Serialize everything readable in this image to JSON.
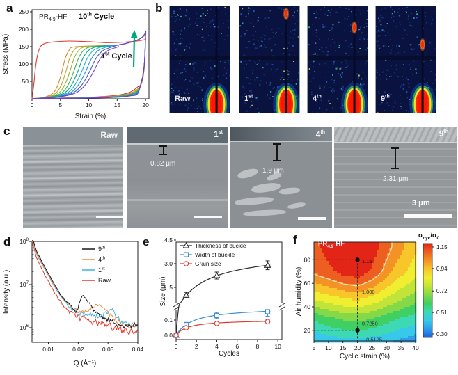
{
  "panel_letters": [
    "a",
    "b",
    "c",
    "d",
    "e",
    "f"
  ],
  "chart_data": [
    {
      "id": "a",
      "type": "line",
      "title": {
        "base": "PR",
        "sub": "4.9",
        "rest": "-HF"
      },
      "xlabel": "Strain (%)",
      "ylabel": "Stress (MPa)",
      "xlim": [
        0,
        20.6
      ],
      "ylim": [
        0,
        256
      ],
      "xticks": [
        0,
        5,
        10,
        15,
        20
      ],
      "yticks": [
        50,
        100,
        150,
        200,
        250
      ],
      "annotations": [
        {
          "base": "10",
          "sup": "th",
          "rest": " Cycle",
          "color": "#7a3bc8"
        },
        {
          "base": "1",
          "sup": "st",
          "rest": " Cycle",
          "color": "#d93a2b"
        }
      ],
      "arrow_color": "#00a87a",
      "cycles": [
        {
          "name": "1st",
          "color": "#d93a2b",
          "first": true,
          "end": 171,
          "tail": 1.3
        },
        {
          "name": "2nd",
          "color": "#d98a2b",
          "c": 5.3,
          "end": 183,
          "tail": 1.08
        },
        {
          "name": "3rd",
          "color": "#c2a42a",
          "c": 6.0,
          "end": 184,
          "tail": 1.0
        },
        {
          "name": "4th",
          "color": "#8fba3a",
          "c": 6.7,
          "end": 185,
          "tail": 0.93
        },
        {
          "name": "5th",
          "color": "#3fae54",
          "c": 7.4,
          "end": 186,
          "tail": 0.86
        },
        {
          "name": "6th",
          "color": "#00a884",
          "c": 8.1,
          "end": 187,
          "tail": 0.79
        },
        {
          "name": "7th",
          "color": "#19b3c4",
          "c": 8.8,
          "end": 188,
          "tail": 0.73
        },
        {
          "name": "8th",
          "color": "#2f8fd8",
          "c": 9.5,
          "end": 188.5,
          "tail": 0.67
        },
        {
          "name": "9th",
          "color": "#3f5fd0",
          "c": 10.2,
          "end": 189,
          "tail": 0.61
        },
        {
          "name": "10th",
          "color": "#7a3bc8",
          "c": 10.9,
          "end": 190,
          "tail": 0.55
        }
      ]
    },
    {
      "id": "d",
      "type": "line",
      "yscale": "log",
      "xlabel": "Q (Å⁻¹)",
      "ylabel": "Intensity (a.u.)",
      "xlim": [
        0.0045,
        0.04
      ],
      "xticks": [
        0.01,
        0.02,
        0.03,
        0.04
      ],
      "ytick_exponents": [
        6,
        7,
        8
      ],
      "series": [
        {
          "name": {
            "base": "9",
            "sup": "th"
          },
          "color": "#1a1a1a",
          "noise": 0.75,
          "points": [
            [
              0.0045,
              130000000
            ],
            [
              0.006,
              60000000
            ],
            [
              0.008,
              32000000
            ],
            [
              0.01,
              18000000
            ],
            [
              0.012,
              10000000
            ],
            [
              0.014,
              6000000
            ],
            [
              0.016,
              4000000
            ],
            [
              0.018,
              2900000
            ],
            [
              0.0195,
              2300000
            ],
            [
              0.0205,
              4200000
            ],
            [
              0.0215,
              5500000
            ],
            [
              0.023,
              4300000
            ],
            [
              0.025,
              2600000
            ],
            [
              0.027,
              1900000
            ],
            [
              0.03,
              1500000
            ],
            [
              0.033,
              1200000
            ],
            [
              0.036,
              1050000
            ],
            [
              0.04,
              1250000
            ]
          ]
        },
        {
          "name": {
            "base": "4",
            "sup": "th"
          },
          "color": "#ef8c4a",
          "noise": 0.8,
          "points": [
            [
              0.0045,
              125000000
            ],
            [
              0.006,
              55000000
            ],
            [
              0.008,
              30000000
            ],
            [
              0.01,
              17000000
            ],
            [
              0.012,
              9500000
            ],
            [
              0.014,
              5800000
            ],
            [
              0.016,
              3900000
            ],
            [
              0.018,
              2900000
            ],
            [
              0.02,
              2400000
            ],
            [
              0.022,
              2300000
            ],
            [
              0.024,
              2600000
            ],
            [
              0.026,
              3300000
            ],
            [
              0.0275,
              3400000
            ],
            [
              0.029,
              2600000
            ],
            [
              0.031,
              1800000
            ],
            [
              0.034,
              1300000
            ],
            [
              0.037,
              1150000
            ],
            [
              0.04,
              1100000
            ]
          ]
        },
        {
          "name": {
            "base": "1",
            "sup": "st"
          },
          "color": "#3fb3dc",
          "noise": 0.85,
          "points": [
            [
              0.0045,
              120000000
            ],
            [
              0.006,
              52000000
            ],
            [
              0.008,
              28000000
            ],
            [
              0.01,
              16000000
            ],
            [
              0.012,
              9000000
            ],
            [
              0.014,
              5500000
            ],
            [
              0.016,
              3700000
            ],
            [
              0.018,
              2700000
            ],
            [
              0.02,
              2200000
            ],
            [
              0.023,
              2000000
            ],
            [
              0.026,
              1900000
            ],
            [
              0.028,
              1900000
            ],
            [
              0.03,
              2400000
            ],
            [
              0.0315,
              2500000
            ],
            [
              0.033,
              1700000
            ],
            [
              0.036,
              1200000
            ],
            [
              0.04,
              1150000
            ]
          ]
        },
        {
          "name": {
            "base": "Raw",
            "sup": ""
          },
          "color": "#e6392e",
          "noise": 1.0,
          "points": [
            [
              0.0045,
              100000000
            ],
            [
              0.006,
              42000000
            ],
            [
              0.008,
              21000000
            ],
            [
              0.01,
              12000000
            ],
            [
              0.012,
              6500000
            ],
            [
              0.014,
              4000000
            ],
            [
              0.016,
              2800000
            ],
            [
              0.018,
              2100000
            ],
            [
              0.02,
              1750000
            ],
            [
              0.023,
              1500000
            ],
            [
              0.026,
              1350000
            ],
            [
              0.03,
              1100000
            ],
            [
              0.034,
              900000
            ],
            [
              0.037,
              820000
            ],
            [
              0.04,
              850000
            ]
          ]
        }
      ]
    },
    {
      "id": "e",
      "type": "scatter-line",
      "xlabel": "Cycles",
      "ylabel": "Size (μm)",
      "xlim": [
        0,
        10.4
      ],
      "xticks": [
        0,
        2,
        4,
        6,
        8,
        10
      ],
      "yticks_lower": [
        0.0,
        0.1
      ],
      "yticks_upper": [
        1.5,
        3.0,
        4.5
      ],
      "series": [
        {
          "name": "Thickness of buckle",
          "color": "#2b2b2b",
          "marker": "triangle",
          "x": [
            0,
            1,
            4,
            9
          ],
          "y": [
            0,
            1.0,
            2.25,
            2.9
          ],
          "err": [
            0,
            0.18,
            0.22,
            0.28
          ],
          "trend": {
            "A": 3.8,
            "B": 2.8
          }
        },
        {
          "name": "Width of buckle",
          "color": "#3b8fd4",
          "marker": "square",
          "x": [
            0,
            1,
            4,
            9
          ],
          "y": [
            0,
            0.07,
            0.13,
            0.155
          ],
          "err": [
            0,
            0.015,
            0.02,
            0.03
          ],
          "trend": {
            "A": 0.185,
            "B": 1.6
          }
        },
        {
          "name": "Grain size",
          "color": "#e0392e",
          "marker": "circle",
          "x": [
            0,
            1,
            4,
            9
          ],
          "y": [
            0,
            0.05,
            0.078,
            0.09
          ],
          "err": [
            0,
            0.008,
            0.008,
            0.012
          ],
          "trend": {
            "A": 0.103,
            "B": 1.1
          }
        }
      ]
    },
    {
      "id": "f",
      "type": "contour-heatmap",
      "corner_label": {
        "base": "PR",
        "sub": "4.9",
        "rest": "-HF"
      },
      "xlabel": "Cyclic strain (%)",
      "ylabel": "Air humidity (%)",
      "xticks": [
        5,
        10,
        15,
        20,
        25,
        30,
        35,
        40
      ],
      "yticks": [
        20,
        40,
        60,
        80
      ],
      "grid": {
        "strain": [
          5,
          10,
          15,
          20,
          25,
          30,
          35,
          40
        ],
        "humidity": [
          10,
          30,
          50,
          70,
          90
        ],
        "values": [
          [
            0.44,
            0.46,
            0.48,
            0.49,
            0.47,
            0.45,
            0.42,
            0.39
          ],
          [
            0.6,
            0.64,
            0.67,
            0.68,
            0.66,
            0.62,
            0.58,
            0.55
          ],
          [
            0.84,
            0.87,
            0.9,
            0.92,
            0.88,
            0.82,
            0.76,
            0.71
          ],
          [
            1.02,
            1.06,
            1.11,
            1.13,
            1.07,
            0.97,
            0.89,
            0.83
          ],
          [
            1.05,
            1.11,
            1.16,
            1.17,
            1.12,
            1.03,
            0.95,
            0.88
          ]
        ]
      },
      "white_contour_level": 1.0,
      "points": [
        {
          "strain": 20,
          "humidity": 80
        },
        {
          "strain": 20,
          "humidity": 20
        }
      ],
      "contour_labels": [
        {
          "text": "1.15",
          "strain": 21.5,
          "humidity": 79
        },
        {
          "text": "1.000",
          "strain": 21.5,
          "humidity": 53
        },
        {
          "text": "0.7250",
          "strain": 21.5,
          "humidity": 26
        },
        {
          "text": "0.5125",
          "strain": 23,
          "humidity": 12.5
        }
      ],
      "colorbar": {
        "title": {
          "sym1": "σ",
          "sub1": "cyc",
          "slash": "/",
          "sym2": "σ",
          "sub2": "0"
        },
        "ticks": [
          1.15,
          0.94,
          0.72,
          0.51,
          0.3
        ],
        "vmin": 0.3,
        "vmax": 1.15,
        "band_colors": [
          "#1e5fe0",
          "#2f9de8",
          "#38c8ea",
          "#3cd9b4",
          "#3fcf62",
          "#85d948",
          "#c2e438",
          "#f0ee30",
          "#f6c62a",
          "#f39326",
          "#ec5f21",
          "#e32517"
        ]
      }
    }
  ],
  "panel_b": {
    "beam_x": 0.78,
    "band_y": 0.47,
    "blob_y": 0.92,
    "images": [
      {
        "label": {
          "base": "Raw",
          "sup": ""
        },
        "spot_y": null
      },
      {
        "label": {
          "base": "1",
          "sup": "st"
        },
        "spot_y": 0.07
      },
      {
        "label": {
          "base": "4",
          "sup": "th"
        },
        "spot_y": 0.2
      },
      {
        "label": {
          "base": "9",
          "sup": "th"
        },
        "spot_y": 0.36
      }
    ]
  },
  "panel_c": {
    "images": [
      {
        "label": {
          "base": "Raw",
          "sup": ""
        }
      },
      {
        "label": {
          "base": "1",
          "sup": "st"
        },
        "measure": "0.82 μm"
      },
      {
        "label": {
          "base": "4",
          "sup": "th"
        },
        "measure": "1.9 μm"
      },
      {
        "label": {
          "base": "9",
          "sup": "th"
        },
        "measure": "2.31 μm",
        "scale_label": "3 μm"
      }
    ]
  }
}
